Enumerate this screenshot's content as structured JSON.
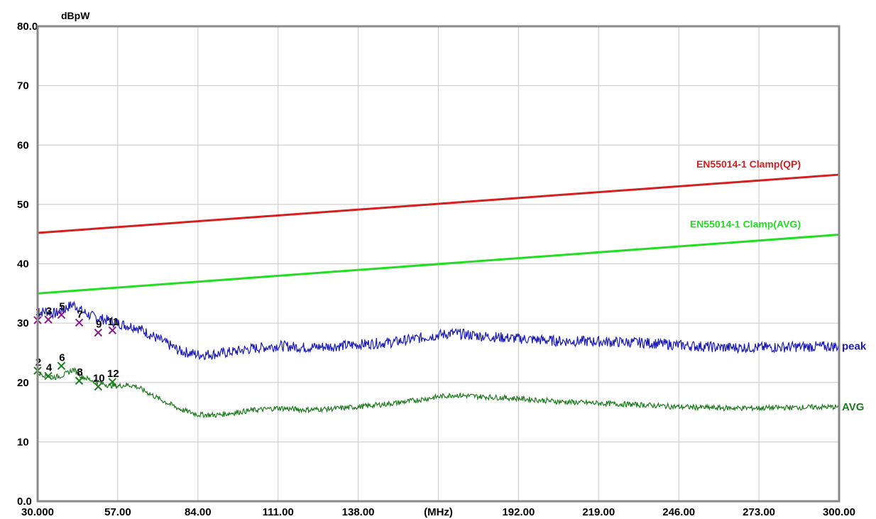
{
  "chart_data": {
    "type": "line",
    "ylabel": "dBpW",
    "xlabel": "(MHz)",
    "xlim": [
      30,
      300
    ],
    "ylim": [
      0,
      80
    ],
    "grid": true,
    "x_tick_labels": [
      "30.000",
      "57.00",
      "84.00",
      "111.00",
      "138.00",
      "(MHz)",
      "192.00",
      "219.00",
      "246.00",
      "273.00",
      "300.00"
    ],
    "y_tick_labels": [
      "80.0",
      "70",
      "60",
      "50",
      "40",
      "30",
      "20",
      "10",
      "0.0"
    ],
    "y_tick_values": [
      80,
      70,
      60,
      50,
      40,
      30,
      20,
      10,
      0
    ],
    "limit_lines": [
      {
        "name": "EN55014-1 Clamp(QP)",
        "color": "#d42020",
        "x": [
          30,
          300
        ],
        "y": [
          45.2,
          55.0
        ]
      },
      {
        "name": "EN55014-1 Clamp(AVG)",
        "color": "#22dd22",
        "x": [
          30,
          300
        ],
        "y": [
          35.0,
          44.9
        ]
      }
    ],
    "series": [
      {
        "name": "peak",
        "color": "#1a1ab8",
        "x": [
          30,
          33,
          36,
          39,
          42,
          45,
          48,
          51,
          54,
          57,
          60,
          63,
          66,
          70,
          74,
          78,
          84,
          90,
          96,
          102,
          111,
          120,
          130,
          138,
          150,
          160,
          165,
          170,
          180,
          192,
          205,
          219,
          235,
          246,
          260,
          273,
          285,
          300
        ],
        "y": [
          31.8,
          32.0,
          31.6,
          32.4,
          33.2,
          32.0,
          31.2,
          30.8,
          30.4,
          30.0,
          29.6,
          29.4,
          28.6,
          27.5,
          26.4,
          25.3,
          24.7,
          24.8,
          25.2,
          25.7,
          26.2,
          25.9,
          26.1,
          26.4,
          26.8,
          27.6,
          28.0,
          28.3,
          27.8,
          27.4,
          27.0,
          26.9,
          26.7,
          26.3,
          25.9,
          25.9,
          26.0,
          26.1
        ]
      },
      {
        "name": "AVG",
        "color": "#1e7a1e",
        "x": [
          30,
          33,
          36,
          39,
          42,
          45,
          48,
          51,
          54,
          57,
          60,
          63,
          66,
          70,
          74,
          78,
          84,
          90,
          96,
          102,
          111,
          120,
          130,
          138,
          150,
          160,
          165,
          170,
          180,
          192,
          205,
          219,
          235,
          246,
          260,
          273,
          285,
          300
        ],
        "y": [
          21.6,
          21.2,
          20.9,
          21.3,
          22.2,
          21.0,
          20.4,
          20.0,
          19.5,
          19.4,
          19.6,
          19.4,
          18.6,
          17.5,
          16.5,
          15.5,
          14.6,
          14.5,
          14.9,
          15.3,
          15.7,
          15.4,
          15.6,
          15.9,
          16.5,
          17.2,
          17.6,
          17.9,
          17.6,
          17.3,
          16.8,
          16.5,
          16.2,
          15.9,
          15.7,
          15.7,
          15.8,
          15.9
        ]
      }
    ],
    "markers": [
      {
        "label": "1",
        "x": 30.0,
        "y": 30.5,
        "color": "#8a1a8a"
      },
      {
        "label": "3",
        "x": 33.6,
        "y": 30.6,
        "color": "#8a1a8a"
      },
      {
        "label": "5",
        "x": 38.0,
        "y": 31.4,
        "color": "#8a1a8a"
      },
      {
        "label": "7",
        "x": 44.0,
        "y": 30.1,
        "color": "#8a1a8a"
      },
      {
        "label": "9",
        "x": 50.4,
        "y": 28.4,
        "color": "#8a1a8a"
      },
      {
        "label": "11",
        "x": 55.2,
        "y": 28.8,
        "color": "#8a1a8a"
      },
      {
        "label": "2",
        "x": 30.0,
        "y": 22.0,
        "color": "#1e7a1e"
      },
      {
        "label": "4",
        "x": 33.6,
        "y": 21.1,
        "color": "#1e7a1e"
      },
      {
        "label": "6",
        "x": 38.0,
        "y": 22.8,
        "color": "#1e7a1e"
      },
      {
        "label": "8",
        "x": 44.0,
        "y": 20.3,
        "color": "#1e7a1e"
      },
      {
        "label": "10",
        "x": 50.4,
        "y": 19.3,
        "color": "#1e7a1e"
      },
      {
        "label": "12",
        "x": 55.2,
        "y": 20.1,
        "color": "#1e7a1e"
      }
    ]
  }
}
